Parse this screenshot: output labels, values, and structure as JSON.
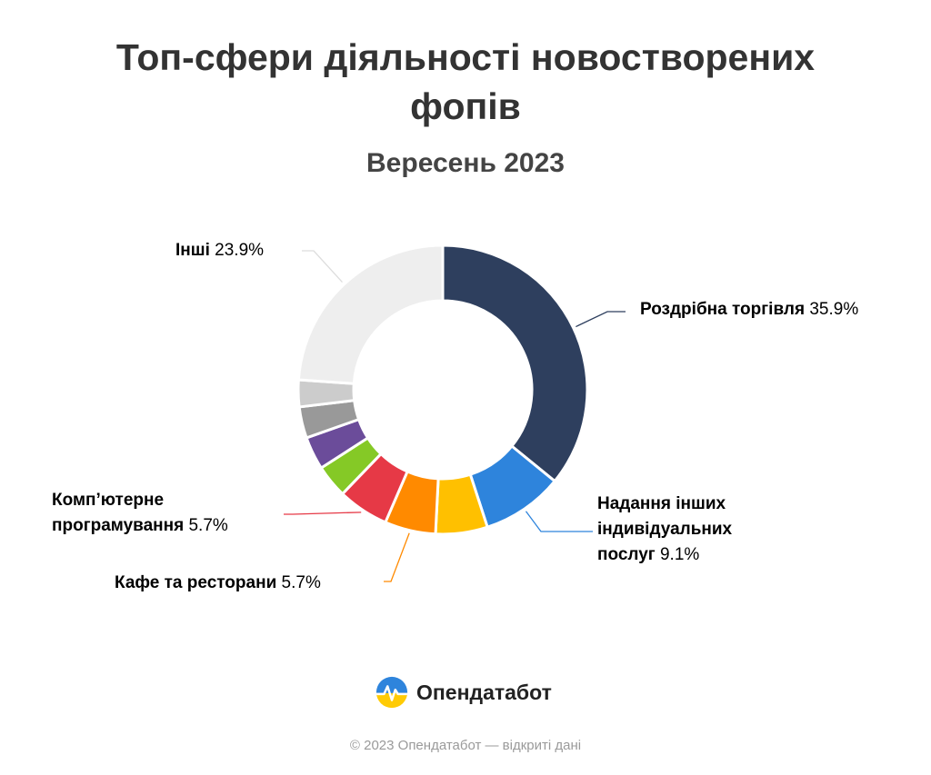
{
  "chart_data": {
    "type": "pie",
    "title": "Топ-сфери діяльності новостворених фопів",
    "subtitle": "Вересень 2023",
    "slices": [
      {
        "key": "retail",
        "name": "Роздрібна торгівля",
        "value": 35.9,
        "label": "35.9%",
        "color": "#2e3f5e",
        "labeled": true
      },
      {
        "key": "services",
        "name": "Надання інших індивідуальних послуг",
        "value": 9.1,
        "label": "9.1%",
        "color": "#2e84dc",
        "labeled": true
      },
      {
        "key": "yellow",
        "name": "",
        "value": 5.8,
        "label": "",
        "color": "#ffc000",
        "labeled": false
      },
      {
        "key": "cafe",
        "name": "Кафе та ресторани",
        "value": 5.7,
        "label": "5.7%",
        "color": "#ff8a00",
        "labeled": true
      },
      {
        "key": "programming",
        "name": "Комп’ютерне програмування",
        "value": 5.7,
        "label": "5.7%",
        "color": "#e63946",
        "labeled": true
      },
      {
        "key": "green",
        "name": "",
        "value": 3.7,
        "label": "",
        "color": "#85c926",
        "labeled": false
      },
      {
        "key": "purple",
        "name": "",
        "value": 3.7,
        "label": "",
        "color": "#6b4c9a",
        "labeled": false
      },
      {
        "key": "grey",
        "name": "",
        "value": 3.5,
        "label": "",
        "color": "#999999",
        "labeled": false
      },
      {
        "key": "lightgrey",
        "name": "",
        "value": 3.0,
        "label": "",
        "color": "#cccccc",
        "labeled": false
      },
      {
        "key": "other",
        "name": "Інші",
        "value": 23.9,
        "label": "23.9%",
        "color": "#eeeeee",
        "labeled": true
      }
    ],
    "labels": {
      "retail": {
        "name": "Роздрібна торгівля",
        "value": "35.9%"
      },
      "services": {
        "name_line1": "Надання інших",
        "name_line2": "індивідуальних",
        "name_line3": "послуг",
        "value": "9.1%"
      },
      "cafe": {
        "name": "Кафе та ресторани",
        "value": "5.7%"
      },
      "programming": {
        "name_line1": "Комп’ютерне",
        "name_line2": "програмування",
        "value": "5.7%"
      },
      "other": {
        "name": "Інші",
        "value": "23.9%"
      }
    }
  },
  "brand": {
    "name": "Опендатабот",
    "icon": "opendatabot-logo-icon",
    "colors": {
      "blue": "#2e84dc",
      "yellow": "#ffcb05"
    }
  },
  "footer": {
    "text": "© 2023 Опендатабот — відкриті дані"
  }
}
